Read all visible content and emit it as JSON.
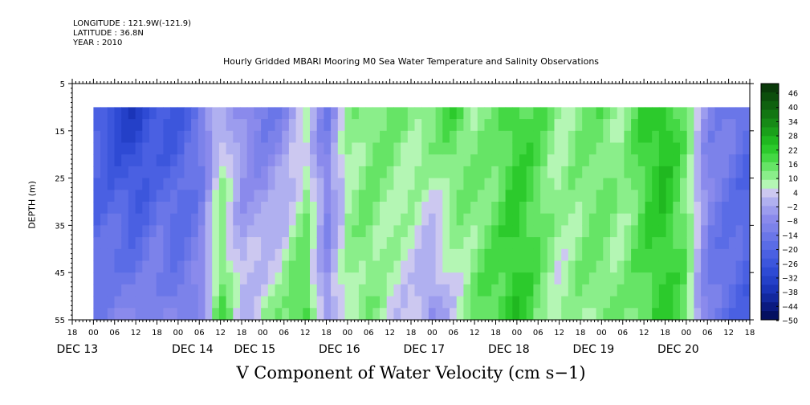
{
  "header": {
    "longitude": "LONGITUDE : 121.9W(-121.9)",
    "latitude": "LATITUDE : 36.8N",
    "year": "YEAR : 2010"
  },
  "chart_data": {
    "type": "heatmap",
    "title": "Hourly Gridded MBARI Mooring M0 Sea Water Temperature and Salinity Observations",
    "bottom_title": "V Component of Water Velocity (cm s−1)",
    "ylabel": "DEPTH (m)",
    "y_ticks": [
      "5",
      "15",
      "25",
      "35",
      "45",
      "55"
    ],
    "ylim": [
      5,
      55
    ],
    "y_reversed": true,
    "x_hour_labels": [
      "18",
      "00",
      "06",
      "12",
      "18",
      "00",
      "06",
      "12",
      "18",
      "00",
      "06",
      "12",
      "18",
      "00",
      "06",
      "12",
      "18",
      "00",
      "06",
      "12",
      "18",
      "00",
      "06",
      "12",
      "18",
      "00",
      "06",
      "12",
      "18",
      "00",
      "06",
      "12",
      "18"
    ],
    "x_date_labels": [
      "DEC 13",
      "DEC 14",
      "DEC 15",
      "DEC 16",
      "DEC 17",
      "DEC 18",
      "DEC 19",
      "DEC 20"
    ],
    "x_range_hours": [
      "DEC 13 18:00",
      "DEC 21 18:00"
    ],
    "data_depth_range": [
      10,
      55
    ],
    "data_time_range": [
      "DEC 14 00:00",
      "DEC 21 18:00"
    ],
    "colorbar": {
      "labels": [
        "46",
        "40",
        "34",
        "28",
        "22",
        "16",
        "10",
        "4",
        "−2",
        "−8",
        "−14",
        "−20",
        "−26",
        "−32",
        "−38",
        "−44",
        "−50"
      ],
      "colors": [
        "#0a3a0a",
        "#0c4e0c",
        "#0f610f",
        "#127612",
        "#168a16",
        "#1aa01a",
        "#20b820",
        "#2cca2c",
        "#44d844",
        "#66e466",
        "#8aee8a",
        "#b4f6b4",
        "#ccc8f0",
        "#b0b0f0",
        "#9c9cee",
        "#8a8aec",
        "#7c82ea",
        "#6a76e8",
        "#5a6ce6",
        "#4a60e2",
        "#3c56dc",
        "#2e4ad4",
        "#2440c8",
        "#1a34b8",
        "#12289e",
        "#0a1a80",
        "#041060"
      ]
    },
    "v_profile_cm_s": {
      "time_hours_from_dec14_00": [
        0,
        6,
        12,
        18,
        24,
        30,
        36,
        42,
        48,
        54,
        60,
        66,
        72,
        78,
        84,
        90,
        96,
        102,
        108,
        114,
        120,
        126,
        132,
        138,
        144,
        150,
        156,
        162,
        168,
        174,
        180,
        186
      ],
      "surface_10m": [
        -22,
        -30,
        -34,
        -26,
        -24,
        -16,
        4,
        -6,
        -14,
        -10,
        6,
        -12,
        10,
        14,
        16,
        12,
        16,
        20,
        12,
        14,
        22,
        18,
        10,
        14,
        16,
        10,
        22,
        26,
        14,
        -8,
        -12,
        -18
      ],
      "bottom_55m": [
        -14,
        -8,
        -10,
        -6,
        -12,
        -8,
        20,
        2,
        10,
        14,
        22,
        -4,
        10,
        14,
        6,
        4,
        -6,
        4,
        14,
        20,
        24,
        16,
        8,
        12,
        14,
        12,
        18,
        22,
        16,
        -12,
        -18,
        -22
      ]
    }
  }
}
